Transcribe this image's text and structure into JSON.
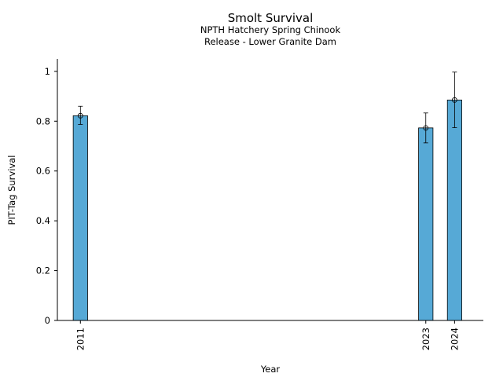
{
  "chart_data": {
    "type": "bar",
    "title": "Smolt Survival",
    "subtitle_lines": [
      "NPTH Hatchery Spring Chinook",
      "Release - Lower Granite Dam"
    ],
    "xlabel": "Year",
    "ylabel": "PIT-Tag Survival",
    "xlim": [
      2010.2,
      2025
    ],
    "ylim": [
      0,
      1.05
    ],
    "y_ticks": [
      0,
      0.2,
      0.4,
      0.6,
      0.8,
      1
    ],
    "y_tick_labels": [
      "0",
      "0.2",
      "0.4",
      "0.6",
      "0.8",
      "1"
    ],
    "grid": false,
    "legend": false,
    "bar_color": "#56a9d6",
    "bar_edge_color": "#000000",
    "points": [
      {
        "x": 2011,
        "label": "2011",
        "value": 0.822,
        "err_low": 0.787,
        "err_high": 0.86
      },
      {
        "x": 2023,
        "label": "2023",
        "value": 0.773,
        "err_low": 0.713,
        "err_high": 0.833
      },
      {
        "x": 2024,
        "label": "2024",
        "value": 0.885,
        "err_low": 0.774,
        "err_high": 0.997
      }
    ]
  }
}
